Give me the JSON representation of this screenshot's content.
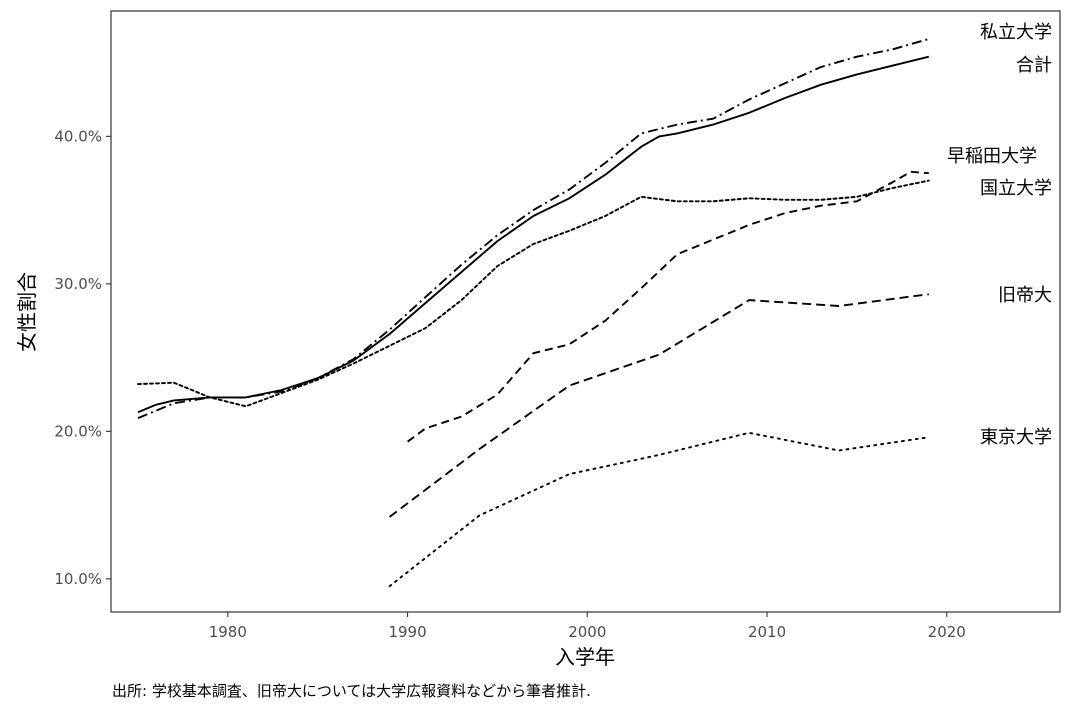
{
  "chart_data": {
    "type": "line",
    "xlabel": "入学年",
    "ylabel": "女性割合",
    "xlim": [
      1973.5,
      2026.3
    ],
    "ylim": [
      7.75,
      48.5
    ],
    "x_ticks": [
      1980,
      1990,
      2000,
      2010,
      2020
    ],
    "y_ticks": [
      10,
      20,
      30,
      40
    ],
    "y_tick_labels": [
      "10.0%",
      "20.0%",
      "30.0%",
      "40.0%"
    ],
    "grid": false,
    "legend": "none (direct labels at line ends)",
    "series": [
      {
        "name": "私立大学",
        "line_style": "dashdot",
        "x": [
          1975,
          1977,
          1979,
          1981,
          1983,
          1985,
          1987,
          1989,
          1991,
          1993,
          1995,
          1997,
          1999,
          2001,
          2003,
          2005,
          2007,
          2009,
          2011,
          2013,
          2015,
          2017,
          2019
        ],
        "values": [
          20.9,
          21.9,
          22.3,
          22.3,
          22.7,
          23.6,
          24.9,
          26.9,
          29.1,
          31.3,
          33.3,
          35.0,
          36.4,
          38.2,
          40.2,
          40.8,
          41.2,
          42.5,
          43.6,
          44.7,
          45.4,
          45.9,
          46.6
        ]
      },
      {
        "name": "合計",
        "line_style": "solid",
        "x": [
          1975,
          1976,
          1977,
          1979,
          1981,
          1983,
          1985,
          1987,
          1989,
          1991,
          1993,
          1995,
          1997,
          1999,
          2001,
          2003,
          2004,
          2005,
          2007,
          2009,
          2011,
          2013,
          2015,
          2017,
          2019
        ],
        "values": [
          21.3,
          21.8,
          22.1,
          22.3,
          22.3,
          22.8,
          23.6,
          24.8,
          26.6,
          28.7,
          30.8,
          32.9,
          34.6,
          35.8,
          37.4,
          39.3,
          40.0,
          40.2,
          40.8,
          41.6,
          42.6,
          43.5,
          44.2,
          44.8,
          45.4
        ]
      },
      {
        "name": "早稲田大学",
        "line_style": "dashed",
        "x": [
          1990,
          1991,
          1993,
          1995,
          1997,
          1999,
          2001,
          2003,
          2005,
          2007,
          2009,
          2011,
          2013,
          2015,
          2017,
          2018,
          2019
        ],
        "values": [
          19.3,
          20.2,
          21.0,
          22.5,
          25.3,
          25.9,
          27.5,
          29.7,
          32.0,
          33.0,
          34.0,
          34.8,
          35.3,
          35.6,
          36.9,
          37.6,
          37.5
        ]
      },
      {
        "name": "国立大学",
        "line_style": "dotted",
        "x": [
          1975,
          1977,
          1979,
          1981,
          1983,
          1985,
          1987,
          1989,
          1991,
          1993,
          1995,
          1997,
          1999,
          2001,
          2003,
          2005,
          2007,
          2009,
          2011,
          2013,
          2015,
          2017,
          2019
        ],
        "values": [
          23.2,
          23.3,
          22.3,
          21.7,
          22.6,
          23.5,
          24.6,
          25.8,
          27.0,
          28.9,
          31.2,
          32.7,
          33.6,
          34.6,
          35.9,
          35.6,
          35.6,
          35.8,
          35.7,
          35.7,
          35.9,
          36.5,
          37.0
        ]
      },
      {
        "name": "旧帝大",
        "line_style": "long-dashed",
        "x": [
          1989,
          1994,
          1999,
          2004,
          2009,
          2014,
          2019
        ],
        "values": [
          14.2,
          18.8,
          23.1,
          25.2,
          28.9,
          28.5,
          29.3
        ]
      },
      {
        "name": "東京大学",
        "line_style": "sparse-dotted",
        "x": [
          1989,
          1994,
          1999,
          2004,
          2009,
          2014,
          2019
        ],
        "values": [
          9.5,
          14.3,
          17.1,
          18.4,
          19.9,
          18.7,
          19.6
        ]
      }
    ]
  },
  "caption": "出所: 学校基本調査、旧帝大については大学広報資料などから筆者推計."
}
